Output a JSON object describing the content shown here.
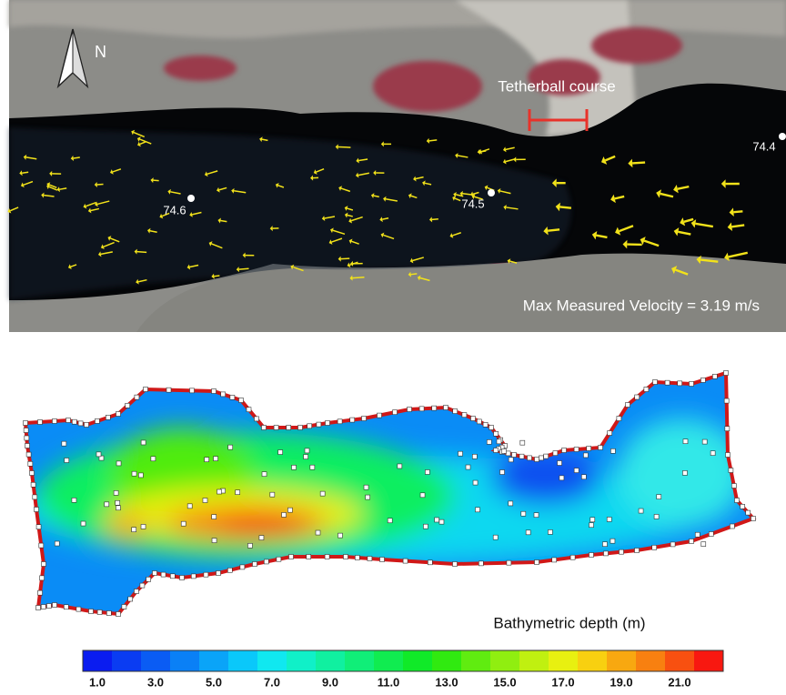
{
  "top_panel": {
    "north_label": "N",
    "scale_label": "Tetherball course",
    "points": [
      {
        "label": "74.6"
      },
      {
        "label": "74.5"
      },
      {
        "label": "74.4"
      }
    ],
    "caption": "Max Measured Velocity = 3.19 m/s"
  },
  "bottom_panel": {
    "legend_title": "Bathymetric depth (m)",
    "colorbar": {
      "colors": [
        "#0a1cf0",
        "#0a3cf2",
        "#0a5cf4",
        "#0a80f6",
        "#0aa4f8",
        "#0ac8fa",
        "#10e8f0",
        "#10f0c8",
        "#10f0a0",
        "#10ee78",
        "#10ec50",
        "#10ea28",
        "#30ea10",
        "#60ec10",
        "#90ee10",
        "#c0f010",
        "#e8f010",
        "#f8d010",
        "#f8a810",
        "#f88010",
        "#f85010",
        "#f81810"
      ],
      "ticks": [
        "1.0",
        "3.0",
        "5.0",
        "7.0",
        "9.0",
        "11.0",
        "13.0",
        "15.0",
        "17.0",
        "19.0",
        "21.0"
      ]
    }
  }
}
